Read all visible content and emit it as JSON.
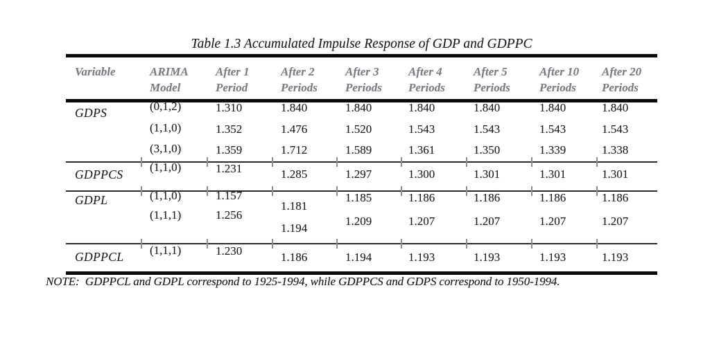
{
  "title": "Table 1.3 Accumulated Impulse Response of GDP and GDPPC",
  "note": "NOTE:  GDPPCL and GDPL correspond to 1925-1994, while GDPPCS and GDPS correspond to 1950-1994.",
  "colors": {
    "rule": "#0b0b0b",
    "header_text": "#7d7d86",
    "body_text": "#1d1d24",
    "background": "#ffffff"
  },
  "chart_data": {
    "type": "table",
    "title": "Table 1.3 Accumulated Impulse Response of GDP and GDPPC",
    "headers": [
      [
        "Variable"
      ],
      [
        "ARIMA",
        "Model"
      ],
      [
        "After 1",
        "Period"
      ],
      [
        "After 2",
        "Periods"
      ],
      [
        "After 3",
        "Periods"
      ],
      [
        "After 4",
        "Periods"
      ],
      [
        "After 5",
        "Periods"
      ],
      [
        "After 10",
        "Periods"
      ],
      [
        "After 20",
        "Periods"
      ]
    ],
    "sections": [
      {
        "variable": "GDPS",
        "rows": [
          {
            "model": "(0,1,2)",
            "values": [
              "1.310",
              "1.840",
              "1.840",
              "1.840",
              "1.840",
              "1.840",
              "1.840"
            ]
          },
          {
            "model": "(1,1,0)",
            "values": [
              "1.352",
              "1.476",
              "1.520",
              "1.543",
              "1.543",
              "1.543",
              "1.543"
            ]
          },
          {
            "model": "(3,1,0)",
            "values": [
              "1.359",
              "1.712",
              "1.589",
              "1.361",
              "1.350",
              "1.339",
              "1.338"
            ]
          }
        ]
      },
      {
        "variable": "GDPPCS",
        "rows": [
          {
            "model": "(1,1,0)",
            "values": [
              "1.231",
              "1.285",
              "1.297",
              "1.300",
              "1.301",
              "1.301",
              "1.301"
            ]
          }
        ]
      },
      {
        "variable": "GDPL",
        "rows": [
          {
            "model": "(1,1,0)",
            "values": [
              "1.157",
              "1.181",
              "1.185",
              "1.186",
              "1.186",
              "1.186",
              "1.186"
            ]
          },
          {
            "model": "(1,1,1)",
            "values": [
              "1.256",
              "1.194",
              "1.209",
              "1.207",
              "1.207",
              "1.207",
              "1.207"
            ]
          }
        ]
      },
      {
        "variable": "GDPPCL",
        "rows": [
          {
            "model": "(1,1,1)",
            "values": [
              "1.230",
              "1.186",
              "1.194",
              "1.193",
              "1.193",
              "1.193",
              "1.193"
            ]
          }
        ]
      }
    ],
    "note": "NOTE:  GDPPCL and GDPL correspond to 1925-1994, while GDPPCS and GDPS correspond to 1950-1994."
  }
}
